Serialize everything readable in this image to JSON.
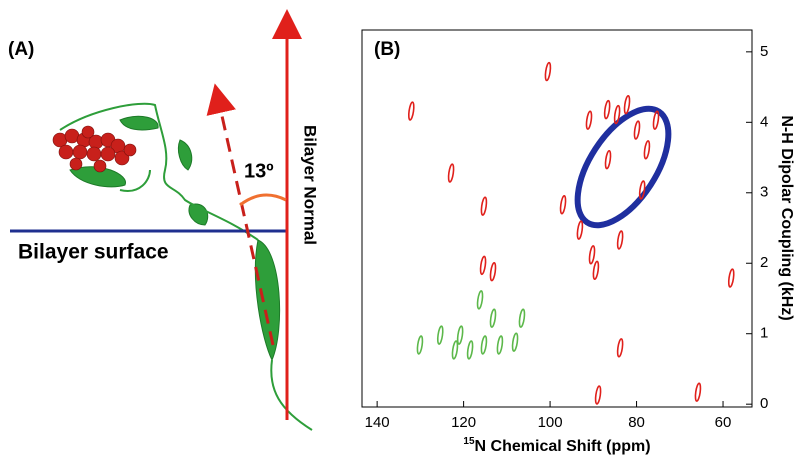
{
  "panel_a": {
    "label": "(A)",
    "surface_label": "Bilayer surface",
    "normal_label": "Bilayer Normal",
    "angle_label": "13º"
  },
  "chart_data": {
    "type": "scatter",
    "panel_label": "(B)",
    "x_label_superscript": "15",
    "x_label": "N Chemical Shift (ppm)",
    "y_label": "N-H Dipolar Coupling (kHz)",
    "xlim": [
      143.5,
      53.3
    ],
    "xticks": [
      140,
      120,
      100,
      80,
      60
    ],
    "ylim": [
      -0.04,
      5.31
    ],
    "yticks": [
      0,
      1,
      2,
      3,
      4,
      5
    ],
    "grid": false,
    "series": [
      {
        "color": "#e0201b",
        "x": [
          132.1,
          100.5,
          122.9,
          115.3,
          97.0,
          91.0,
          86.8,
          86.6,
          84.5,
          82.2,
          79.9,
          77.6,
          75.5,
          78.7,
          83.8,
          90.3,
          89.4,
          93.1,
          115.5,
          113.2,
          83.8,
          88.9,
          65.8,
          58.1
        ],
        "values": [
          4.16,
          4.72,
          3.28,
          2.81,
          2.83,
          4.03,
          4.18,
          3.47,
          4.11,
          4.25,
          3.89,
          3.61,
          4.03,
          3.04,
          2.33,
          2.12,
          1.9,
          2.47,
          1.97,
          1.88,
          0.8,
          0.13,
          0.17,
          1.79
        ]
      },
      {
        "color": "#5cb84a",
        "x": [
          116.2,
          113.2,
          115.3,
          125.4,
          130.1,
          122.0,
          118.5,
          111.6,
          108.1,
          106.5,
          120.8
        ],
        "values": [
          1.48,
          1.22,
          0.84,
          0.98,
          0.84,
          0.77,
          0.77,
          0.84,
          0.88,
          1.22,
          0.98
        ]
      }
    ]
  }
}
